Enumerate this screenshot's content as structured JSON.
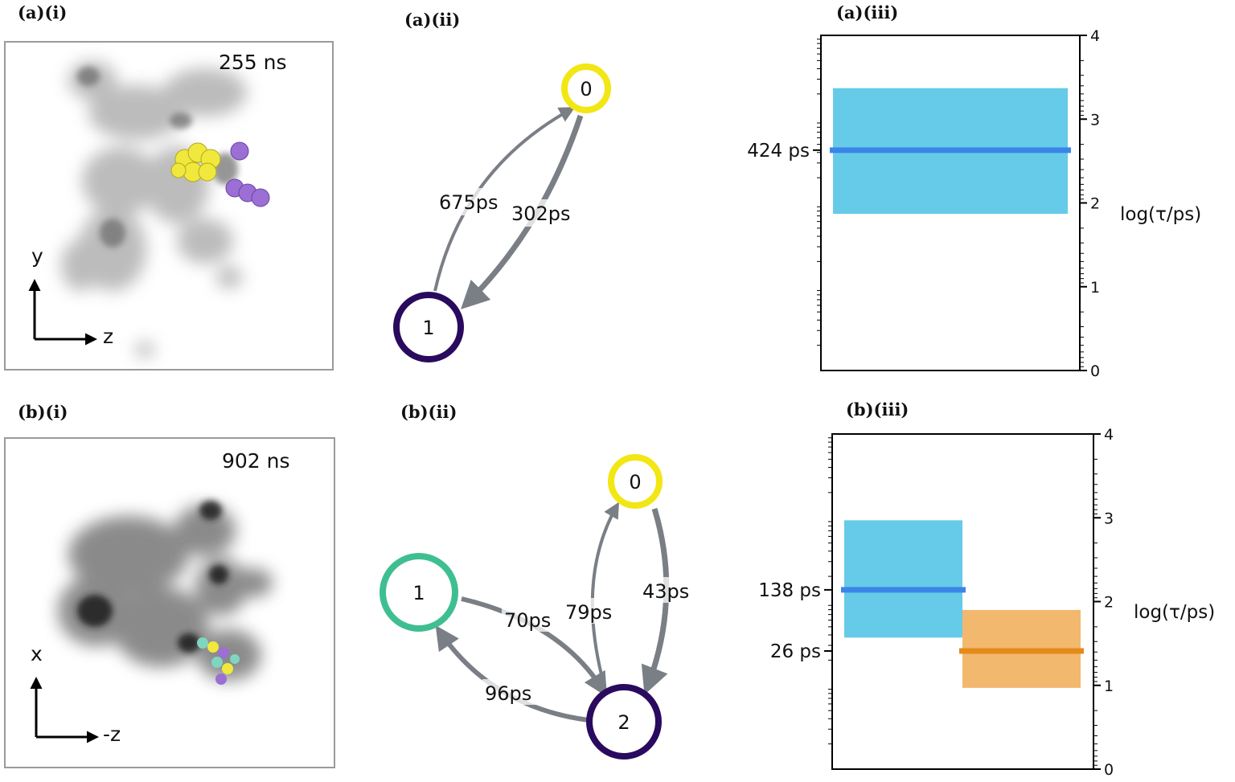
{
  "panels": {
    "a_i": "(a)(i)",
    "a_ii": "(a)(ii)",
    "a_iii": "(a)(iii)",
    "b_i": "(b)(i)",
    "b_ii": "(b)(ii)",
    "b_iii": "(b)(iii)"
  },
  "snapshots": {
    "a": {
      "time": "255 ns",
      "axis_up": "y",
      "axis_right": "z"
    },
    "b": {
      "time": "902 ns",
      "axis_up": "x",
      "axis_right": "-z"
    }
  },
  "graph_a": {
    "nodes": [
      "0",
      "1"
    ],
    "node_colors": [
      "#f2e614",
      "#2a0a5e"
    ],
    "edges": [
      {
        "from": "1",
        "to": "0",
        "label": "675ps"
      },
      {
        "from": "0",
        "to": "1",
        "label": "302ps"
      }
    ]
  },
  "graph_b": {
    "nodes": [
      "0",
      "1",
      "2"
    ],
    "node_colors": [
      "#f2e614",
      "#3fbf91",
      "#2a0a5e"
    ],
    "edges": [
      {
        "from": "2",
        "to": "0",
        "label": "79ps"
      },
      {
        "from": "0",
        "to": "2",
        "label": "43ps"
      },
      {
        "from": "1",
        "to": "2",
        "label": "70ps"
      },
      {
        "from": "2",
        "to": "1",
        "label": "96ps"
      }
    ]
  },
  "chart_data": [
    {
      "type": "bar",
      "ylabel": "log(τ/ps)",
      "ylim": [
        0,
        4
      ],
      "yticks": [
        "0",
        "1",
        "2",
        "3",
        "4"
      ],
      "states": [
        {
          "label": "424 ps",
          "log_tau": 2.63,
          "low": 1.87,
          "high": 3.37,
          "color": "#3a86e8",
          "band_color": "#66cbe8"
        }
      ]
    },
    {
      "type": "bar",
      "ylabel": "log(τ/ps)",
      "ylim": [
        0,
        4
      ],
      "yticks": [
        "0",
        "1",
        "2",
        "3",
        "4"
      ],
      "states": [
        {
          "label": "138 ps",
          "log_tau": 2.14,
          "low": 1.57,
          "high": 2.97,
          "color": "#3a86e8",
          "band_color": "#66cbe8"
        },
        {
          "label": "26 ps",
          "log_tau": 1.41,
          "low": 0.97,
          "high": 1.9,
          "color": "#e58a1a",
          "band_color": "#f2b86e"
        }
      ]
    }
  ]
}
